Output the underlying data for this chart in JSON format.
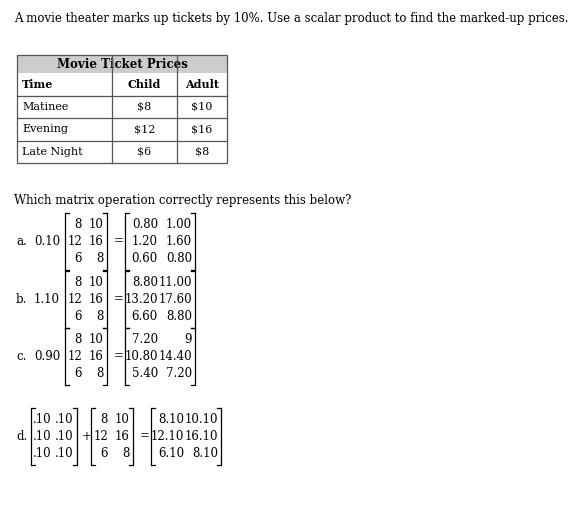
{
  "title_text": "A movie theater marks up tickets by 10%. Use a scalar product to find the marked-up prices.",
  "table_title": "Movie Ticket Prices",
  "table_headers": [
    "Time",
    "Child",
    "Adult"
  ],
  "table_rows": [
    [
      "Matinee",
      "$8",
      "$10"
    ],
    [
      "Evening",
      "$12",
      "$16"
    ],
    [
      "Late Night",
      "$6",
      "$8"
    ]
  ],
  "question": "Which matrix operation correctly represents this below?",
  "options": [
    {
      "label": "a.",
      "scalar": "0.10",
      "matrix": [
        [
          "8",
          "10"
        ],
        [
          "12",
          "16"
        ],
        [
          "6",
          "8"
        ]
      ],
      "operator": "=",
      "result": [
        [
          "0.80",
          "1.00"
        ],
        [
          "1.20",
          "1.60"
        ],
        [
          "0.60",
          "0.80"
        ]
      ]
    },
    {
      "label": "b.",
      "scalar": "1.10",
      "matrix": [
        [
          "8",
          "10"
        ],
        [
          "12",
          "16"
        ],
        [
          "6",
          "8"
        ]
      ],
      "operator": "=",
      "result": [
        [
          "8.80",
          "11.00"
        ],
        [
          "13.20",
          "17.60"
        ],
        [
          "6.60",
          "8.80"
        ]
      ]
    },
    {
      "label": "c.",
      "scalar": "0.90",
      "matrix": [
        [
          "8",
          "10"
        ],
        [
          "12",
          "16"
        ],
        [
          "6",
          "8"
        ]
      ],
      "operator": "=",
      "result": [
        [
          "7.20",
          "9"
        ],
        [
          "10.80",
          "14.40"
        ],
        [
          "5.40",
          "7.20"
        ]
      ]
    },
    {
      "label": "d.",
      "scalar_matrix": [
        [
          ".10",
          ".10"
        ],
        [
          ".10",
          ".10"
        ],
        [
          ".10",
          ".10"
        ]
      ],
      "operator1": "+",
      "matrix": [
        [
          "8",
          "10"
        ],
        [
          "12",
          "16"
        ],
        [
          "6",
          "8"
        ]
      ],
      "operator2": "=",
      "result": [
        [
          "8.10",
          "10.10"
        ],
        [
          "12.10",
          "16.10"
        ],
        [
          "6.10",
          "8.10"
        ]
      ]
    }
  ],
  "bg_color": "#ffffff",
  "text_color": "#000000",
  "font_size": 8.5,
  "font_family": "DejaVu Serif"
}
